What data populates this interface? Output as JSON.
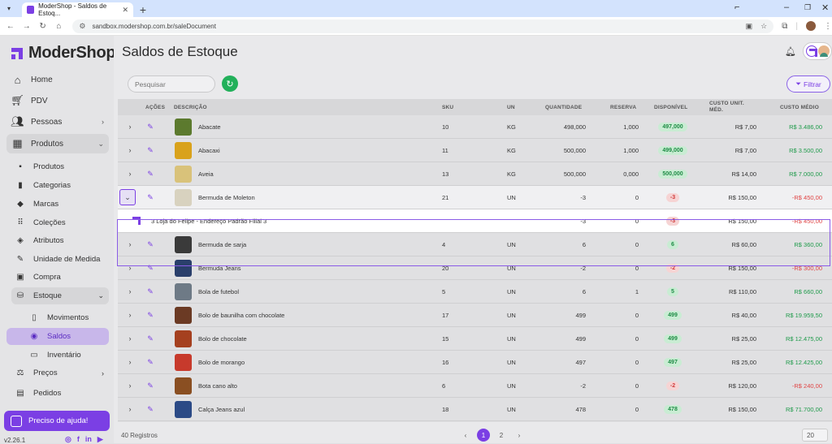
{
  "browser": {
    "tab_title": "ModerShop - Saldos de Estoq...",
    "url": "sandbox.modershop.com.br/saleDocument"
  },
  "sidebar": {
    "brand": "ModerShop",
    "items": [
      {
        "label": "Home",
        "icon": "home-icon"
      },
      {
        "label": "PDV",
        "icon": "cart-icon"
      },
      {
        "label": "Pessoas",
        "icon": "people-icon"
      },
      {
        "label": "Produtos",
        "icon": "box-icon"
      }
    ],
    "produtos_sub": [
      {
        "label": "Produtos",
        "icon": "box-icon"
      },
      {
        "label": "Categorias",
        "icon": "bookmark-icon"
      },
      {
        "label": "Marcas",
        "icon": "diamond-icon"
      },
      {
        "label": "Coleções",
        "icon": "grid-icon"
      },
      {
        "label": "Atributos",
        "icon": "tag-icon"
      },
      {
        "label": "Unidade de Medida",
        "icon": "ruler-icon"
      },
      {
        "label": "Compra",
        "icon": "cart-icon"
      },
      {
        "label": "Estoque",
        "icon": "warehouse-icon"
      }
    ],
    "estoque_sub": [
      {
        "label": "Movimentos",
        "icon": "document-icon"
      },
      {
        "label": "Saldos",
        "icon": "balance-icon"
      },
      {
        "label": "Inventário",
        "icon": "inventory-icon"
      }
    ],
    "more_items": [
      {
        "label": "Preços",
        "icon": "price-icon"
      },
      {
        "label": "Pedidos",
        "icon": "orders-icon"
      }
    ],
    "help_label": "Preciso de ajuda!",
    "version": "v2.26.1"
  },
  "header": {
    "title": "Saldos de Estoque"
  },
  "toolbar": {
    "search_placeholder": "Pesquisar",
    "filter_label": "Filtrar"
  },
  "table": {
    "columns": [
      "AÇÕES",
      "DESCRIÇÃO",
      "SKU",
      "UN",
      "QUANTIDADE",
      "RESERVA",
      "DISPONÍVEL",
      "CUSTO UNIT. MÉD.",
      "CUSTO MÉDIO"
    ],
    "rows": [
      {
        "desc": "Abacate",
        "sku": "10",
        "un": "KG",
        "qty": "498,000",
        "res": "1,000",
        "disp": "497,000",
        "unit": "R$ 7,00",
        "avg": "R$ 3.486,00",
        "thumb": "#5c7a2e",
        "neg": false
      },
      {
        "desc": "Abacaxi",
        "sku": "11",
        "un": "KG",
        "qty": "500,000",
        "res": "1,000",
        "disp": "499,000",
        "unit": "R$ 7,00",
        "avg": "R$ 3.500,00",
        "thumb": "#d9a21b",
        "neg": false
      },
      {
        "desc": "Aveia",
        "sku": "13",
        "un": "KG",
        "qty": "500,000",
        "res": "0,000",
        "disp": "500,000",
        "unit": "R$ 14,00",
        "avg": "R$ 7.000,00",
        "thumb": "#d9c27a",
        "neg": false
      },
      {
        "desc": "Bermuda de Moleton",
        "sku": "21",
        "un": "UN",
        "qty": "-3",
        "res": "0",
        "disp": "-3",
        "unit": "R$ 150,00",
        "avg": "-R$ 450,00",
        "thumb": "#d8d2bf",
        "neg": true
      },
      {
        "desc": "Bermuda de sarja",
        "sku": "4",
        "un": "UN",
        "qty": "6",
        "res": "0",
        "disp": "6",
        "unit": "R$ 60,00",
        "avg": "R$ 360,00",
        "thumb": "#3a3a3a",
        "neg": false
      },
      {
        "desc": "Bermuda Jeans",
        "sku": "20",
        "un": "UN",
        "qty": "-2",
        "res": "0",
        "disp": "-2",
        "unit": "R$ 150,00",
        "avg": "-R$ 300,00",
        "thumb": "#2a3f6b",
        "neg": true
      },
      {
        "desc": "Bola de futebol",
        "sku": "5",
        "un": "UN",
        "qty": "6",
        "res": "1",
        "disp": "5",
        "unit": "R$ 110,00",
        "avg": "R$ 660,00",
        "thumb": "#6e7a86",
        "neg": false
      },
      {
        "desc": "Bolo de baunilha com chocolate",
        "sku": "17",
        "un": "UN",
        "qty": "499",
        "res": "0",
        "disp": "499",
        "unit": "R$ 40,00",
        "avg": "R$ 19.959,50",
        "thumb": "#6b3a24",
        "neg": false
      },
      {
        "desc": "Bolo de chocolate",
        "sku": "15",
        "un": "UN",
        "qty": "499",
        "res": "0",
        "disp": "499",
        "unit": "R$ 25,00",
        "avg": "R$ 12.475,00",
        "thumb": "#a5401f",
        "neg": false
      },
      {
        "desc": "Bolo de morango",
        "sku": "16",
        "un": "UN",
        "qty": "497",
        "res": "0",
        "disp": "497",
        "unit": "R$ 25,00",
        "avg": "R$ 12.425,00",
        "thumb": "#c73a2c",
        "neg": false
      },
      {
        "desc": "Bota cano alto",
        "sku": "6",
        "un": "UN",
        "qty": "-2",
        "res": "0",
        "disp": "-2",
        "unit": "R$ 120,00",
        "avg": "-R$ 240,00",
        "thumb": "#8a4f22",
        "neg": true
      },
      {
        "desc": "Calça Jeans azul",
        "sku": "18",
        "un": "UN",
        "qty": "478",
        "res": "0",
        "disp": "478",
        "unit": "R$ 150,00",
        "avg": "R$ 71.700,00",
        "thumb": "#2b4a86",
        "neg": false
      }
    ],
    "subrow": {
      "desc": "3 Loja do Felipe - Endereço Padrão Filial 3",
      "qty": "-3",
      "res": "0",
      "disp": "-3",
      "unit": "R$ 150,00",
      "avg": "-R$ 450,00"
    }
  },
  "footer": {
    "records": "40 Registros",
    "pages": [
      "1",
      "2"
    ],
    "per_page": "20"
  }
}
